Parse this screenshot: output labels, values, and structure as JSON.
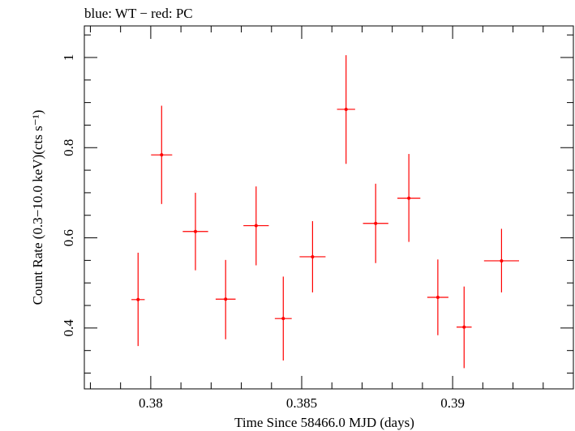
{
  "chart_data": {
    "type": "scatter",
    "title": "blue: WT − red: PC",
    "xlabel": "Time Since 58466.0 MJD (days)",
    "ylabel": "Count Rate (0.3−10.0 keV)(cts s⁻¹)",
    "xlim": [
      0.3778,
      0.394
    ],
    "ylim": [
      0.265,
      1.07
    ],
    "x_ticks": [
      0.38,
      0.385,
      0.39
    ],
    "x_tick_labels": [
      "0.38",
      "0.385",
      "0.39"
    ],
    "y_ticks": [
      0.4,
      0.6,
      0.8,
      1.0
    ],
    "y_tick_labels": [
      "0.4",
      "0.6",
      "0.8",
      "1"
    ],
    "grid": false,
    "series": [
      {
        "color": "#ff0000",
        "points": [
          {
            "x": 0.37958,
            "xerr": 0.00022,
            "y": 0.463,
            "ylo": 0.36,
            "yhi": 0.567
          },
          {
            "x": 0.38036,
            "xerr": 0.00035,
            "y": 0.784,
            "ylo": 0.675,
            "yhi": 0.893
          },
          {
            "x": 0.38148,
            "xerr": 0.00042,
            "y": 0.614,
            "ylo": 0.528,
            "yhi": 0.7
          },
          {
            "x": 0.38248,
            "xerr": 0.00033,
            "y": 0.464,
            "ylo": 0.375,
            "yhi": 0.551
          },
          {
            "x": 0.38349,
            "xerr": 0.00042,
            "y": 0.627,
            "ylo": 0.539,
            "yhi": 0.714
          },
          {
            "x": 0.38439,
            "xerr": 0.00028,
            "y": 0.421,
            "ylo": 0.328,
            "yhi": 0.514
          },
          {
            "x": 0.38536,
            "xerr": 0.00043,
            "y": 0.558,
            "ylo": 0.479,
            "yhi": 0.637
          },
          {
            "x": 0.38647,
            "xerr": 0.0003,
            "y": 0.885,
            "ylo": 0.764,
            "yhi": 1.005
          },
          {
            "x": 0.38745,
            "xerr": 0.00042,
            "y": 0.632,
            "ylo": 0.544,
            "yhi": 0.72
          },
          {
            "x": 0.38855,
            "xerr": 0.00038,
            "y": 0.688,
            "ylo": 0.591,
            "yhi": 0.786
          },
          {
            "x": 0.38951,
            "xerr": 0.00035,
            "y": 0.468,
            "ylo": 0.384,
            "yhi": 0.552
          },
          {
            "x": 0.39038,
            "xerr": 0.00025,
            "y": 0.402,
            "ylo": 0.311,
            "yhi": 0.492
          },
          {
            "x": 0.39162,
            "xerr": 0.00058,
            "y": 0.549,
            "ylo": 0.479,
            "yhi": 0.62
          }
        ]
      }
    ]
  }
}
